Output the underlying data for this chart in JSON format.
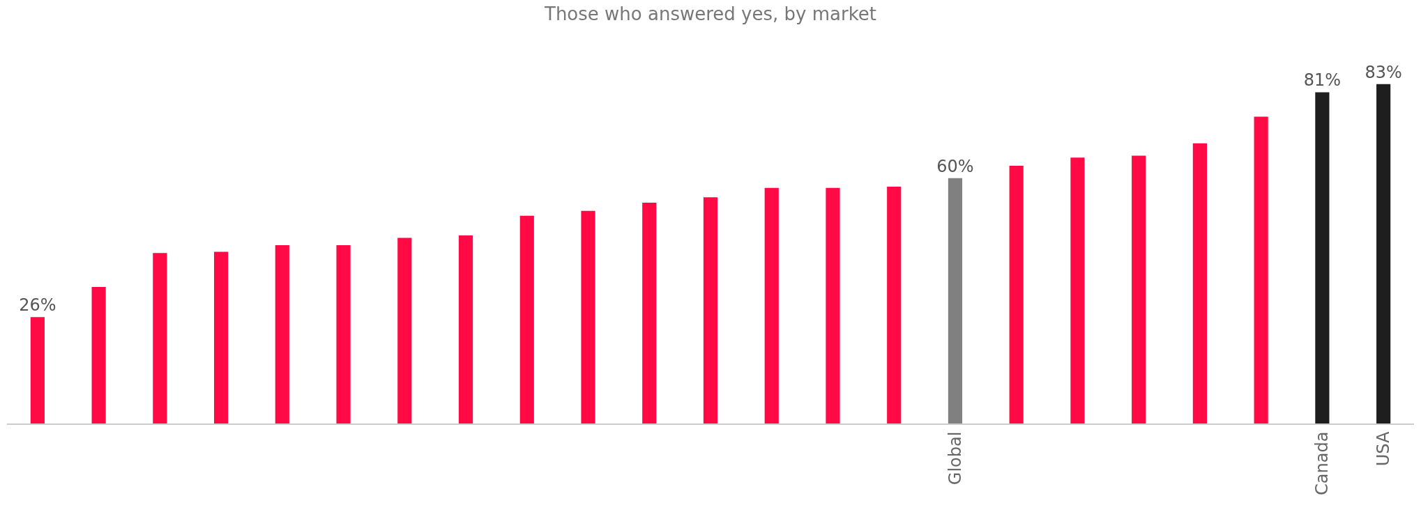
{
  "chart_data": {
    "type": "bar",
    "title": "Those who answered yes, by market",
    "categories": [
      null,
      null,
      null,
      null,
      null,
      null,
      null,
      null,
      null,
      null,
      null,
      null,
      null,
      null,
      null,
      "Global",
      null,
      null,
      null,
      null,
      null,
      "Canada",
      "USA"
    ],
    "values": [
      26,
      33.4,
      41.7,
      42,
      43.6,
      43.6,
      45.4,
      46,
      50.8,
      52,
      54,
      55.3,
      57.6,
      57.6,
      57.9,
      60,
      63,
      65,
      65.5,
      68.5,
      75,
      81,
      83
    ],
    "colors": [
      "#ff0a45",
      "#ff0a45",
      "#ff0a45",
      "#ff0a45",
      "#ff0a45",
      "#ff0a45",
      "#ff0a45",
      "#ff0a45",
      "#ff0a45",
      "#ff0a45",
      "#ff0a45",
      "#ff0a45",
      "#ff0a45",
      "#ff0a45",
      "#ff0a45",
      "#808080",
      "#ff0a45",
      "#ff0a45",
      "#ff0a45",
      "#ff0a45",
      "#ff0a45",
      "#1e1e1e",
      "#1e1e1e"
    ],
    "value_labels": [
      "26%",
      null,
      null,
      null,
      null,
      null,
      null,
      null,
      null,
      null,
      null,
      null,
      null,
      null,
      null,
      "60%",
      null,
      null,
      null,
      null,
      null,
      "81%",
      "83%"
    ],
    "tick_labels": "x"
  }
}
